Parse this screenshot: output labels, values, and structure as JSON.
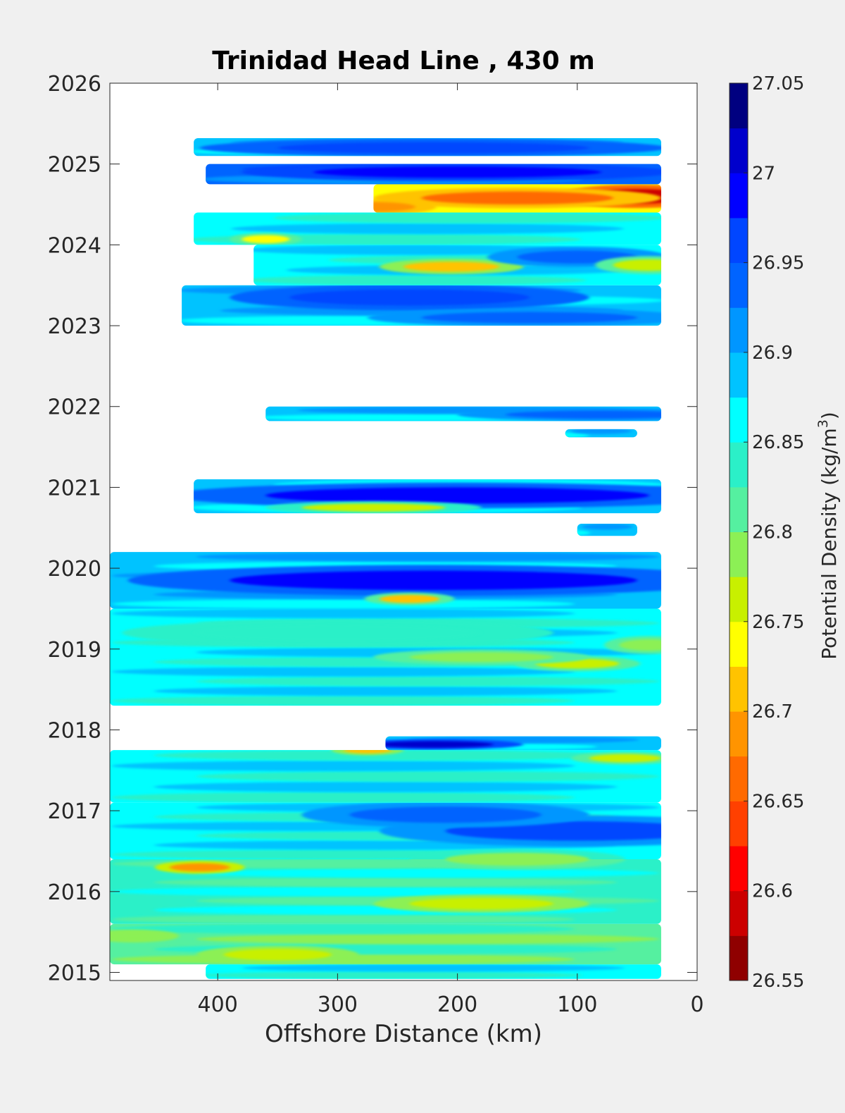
{
  "chart_data": {
    "type": "heatmap",
    "title": "Trinidad Head Line , 430 m",
    "xlabel": "Offshore Distance (km)",
    "ylabel": "",
    "colorbar_label": "Potential Density (kg/m",
    "colorbar_label_sup": "3",
    "colorbar_label_close": ")",
    "x_reversed": true,
    "xlim": [
      490,
      0
    ],
    "ylim": [
      2014.9,
      2026
    ],
    "x_ticks": [
      400,
      300,
      200,
      100,
      0
    ],
    "x_tick_labels": [
      "400",
      "300",
      "200",
      "100",
      "0"
    ],
    "y_ticks": [
      2015,
      2016,
      2017,
      2018,
      2019,
      2020,
      2021,
      2022,
      2023,
      2024,
      2025,
      2026
    ],
    "y_tick_labels": [
      "2015",
      "2016",
      "2017",
      "2018",
      "2019",
      "2020",
      "2021",
      "2022",
      "2023",
      "2024",
      "2025",
      "2026"
    ],
    "color_range": [
      26.55,
      27.05
    ],
    "color_ticks": [
      26.55,
      26.6,
      26.65,
      26.7,
      26.75,
      26.8,
      26.85,
      26.9,
      26.95,
      27,
      27.05
    ],
    "color_tick_labels": [
      "26.55",
      "26.6",
      "26.65",
      "26.7",
      "26.75",
      "26.8",
      "26.85",
      "26.9",
      "26.95",
      "27",
      "27.05"
    ],
    "colormap": [
      "#8f0000",
      "#cc0000",
      "#ff0000",
      "#ff4000",
      "#ff6a00",
      "#ff9400",
      "#ffc300",
      "#ffff00",
      "#c8f000",
      "#8cf055",
      "#55f0a0",
      "#2bf0c8",
      "#00ffff",
      "#00c3ff",
      "#0096ff",
      "#0064ff",
      "#0046ff",
      "#0000ff",
      "#0000cc",
      "#000080"
    ],
    "bands": [
      {
        "y0": 2014.92,
        "y1": 2015.1,
        "x0": 410,
        "x1": 30,
        "base": 26.86
      },
      {
        "y0": 2015.1,
        "y1": 2015.6,
        "x0": 490,
        "x1": 30,
        "base": 26.82
      },
      {
        "y0": 2015.6,
        "y1": 2016.4,
        "x0": 490,
        "x1": 30,
        "base": 26.84
      },
      {
        "y0": 2016.4,
        "y1": 2017.1,
        "x0": 490,
        "x1": 30,
        "base": 26.87
      },
      {
        "y0": 2017.1,
        "y1": 2017.75,
        "x0": 490,
        "x1": 30,
        "base": 26.86
      },
      {
        "y0": 2017.75,
        "y1": 2017.92,
        "x0": 260,
        "x1": 30,
        "base": 26.9
      },
      {
        "y0": 2018.3,
        "y1": 2019.5,
        "x0": 490,
        "x1": 30,
        "base": 26.86
      },
      {
        "y0": 2019.5,
        "y1": 2020.2,
        "x0": 490,
        "x1": 30,
        "base": 26.9
      },
      {
        "y0": 2020.4,
        "y1": 2020.55,
        "x0": 100,
        "x1": 50,
        "base": 26.9
      },
      {
        "y0": 2020.68,
        "y1": 2021.1,
        "x0": 420,
        "x1": 30,
        "base": 26.89
      },
      {
        "y0": 2021.62,
        "y1": 2021.72,
        "x0": 110,
        "x1": 50,
        "base": 26.88
      },
      {
        "y0": 2021.82,
        "y1": 2022.0,
        "x0": 360,
        "x1": 30,
        "base": 26.88
      },
      {
        "y0": 2023.0,
        "y1": 2023.5,
        "x0": 430,
        "x1": 30,
        "base": 26.9
      },
      {
        "y0": 2023.5,
        "y1": 2024.0,
        "x0": 370,
        "x1": 30,
        "base": 26.86
      },
      {
        "y0": 2024.0,
        "y1": 2024.4,
        "x0": 420,
        "x1": 30,
        "base": 26.87
      },
      {
        "y0": 2024.4,
        "y1": 2024.75,
        "x0": 270,
        "x1": 30,
        "base": 26.75
      },
      {
        "y0": 2024.75,
        "y1": 2025.0,
        "x0": 410,
        "x1": 30,
        "base": 26.93
      },
      {
        "y0": 2025.1,
        "y1": 2025.32,
        "x0": 420,
        "x1": 30,
        "base": 26.9
      }
    ],
    "features": [
      {
        "x": 50,
        "y": 2024.6,
        "value": 26.58,
        "rx": 45,
        "ry": 0.09
      },
      {
        "x": 150,
        "y": 2024.58,
        "value": 26.66,
        "rx": 80,
        "ry": 0.08
      },
      {
        "x": 270,
        "y": 2024.47,
        "value": 26.68,
        "rx": 35,
        "ry": 0.06
      },
      {
        "x": 205,
        "y": 2023.73,
        "value": 26.72,
        "rx": 40,
        "ry": 0.06
      },
      {
        "x": 360,
        "y": 2024.07,
        "value": 26.75,
        "rx": 20,
        "ry": 0.05
      },
      {
        "x": 200,
        "y": 2024.9,
        "value": 26.98,
        "rx": 120,
        "ry": 0.07
      },
      {
        "x": 220,
        "y": 2025.2,
        "value": 26.97,
        "rx": 130,
        "ry": 0.07
      },
      {
        "x": 240,
        "y": 2023.35,
        "value": 26.96,
        "rx": 100,
        "ry": 0.1
      },
      {
        "x": 100,
        "y": 2023.85,
        "value": 26.95,
        "rx": 50,
        "ry": 0.08
      },
      {
        "x": 40,
        "y": 2023.75,
        "value": 26.77,
        "rx": 30,
        "ry": 0.07
      },
      {
        "x": 80,
        "y": 2021.9,
        "value": 26.94,
        "rx": 80,
        "ry": 0.05
      },
      {
        "x": 200,
        "y": 2020.9,
        "value": 26.98,
        "rx": 160,
        "ry": 0.1
      },
      {
        "x": 270,
        "y": 2020.75,
        "value": 26.77,
        "rx": 60,
        "ry": 0.05
      },
      {
        "x": 220,
        "y": 2019.85,
        "value": 26.98,
        "rx": 170,
        "ry": 0.12
      },
      {
        "x": 240,
        "y": 2019.62,
        "value": 26.72,
        "rx": 25,
        "ry": 0.05
      },
      {
        "x": 100,
        "y": 2018.82,
        "value": 26.76,
        "rx": 35,
        "ry": 0.06
      },
      {
        "x": 180,
        "y": 2018.9,
        "value": 26.78,
        "rx": 60,
        "ry": 0.06
      },
      {
        "x": 40,
        "y": 2019.05,
        "value": 26.78,
        "rx": 25,
        "ry": 0.07
      },
      {
        "x": 220,
        "y": 2017.82,
        "value": 27.02,
        "rx": 50,
        "ry": 0.04
      },
      {
        "x": 275,
        "y": 2017.75,
        "value": 26.72,
        "rx": 20,
        "ry": 0.04
      },
      {
        "x": 60,
        "y": 2017.65,
        "value": 26.77,
        "rx": 30,
        "ry": 0.05
      },
      {
        "x": 100,
        "y": 2016.75,
        "value": 26.96,
        "rx": 110,
        "ry": 0.12
      },
      {
        "x": 210,
        "y": 2016.95,
        "value": 26.95,
        "rx": 80,
        "ry": 0.1
      },
      {
        "x": 415,
        "y": 2016.3,
        "value": 26.7,
        "rx": 25,
        "ry": 0.05
      },
      {
        "x": 180,
        "y": 2015.85,
        "value": 26.76,
        "rx": 60,
        "ry": 0.07
      },
      {
        "x": 350,
        "y": 2015.22,
        "value": 26.76,
        "rx": 45,
        "ry": 0.07
      },
      {
        "x": 470,
        "y": 2015.45,
        "value": 26.78,
        "rx": 25,
        "ry": 0.05
      },
      {
        "x": 150,
        "y": 2016.4,
        "value": 26.8,
        "rx": 60,
        "ry": 0.08
      },
      {
        "x": 300,
        "y": 2019.2,
        "value": 26.83,
        "rx": 120,
        "ry": 0.1
      },
      {
        "x": 140,
        "y": 2023.1,
        "value": 26.94,
        "rx": 90,
        "ry": 0.07
      }
    ]
  }
}
